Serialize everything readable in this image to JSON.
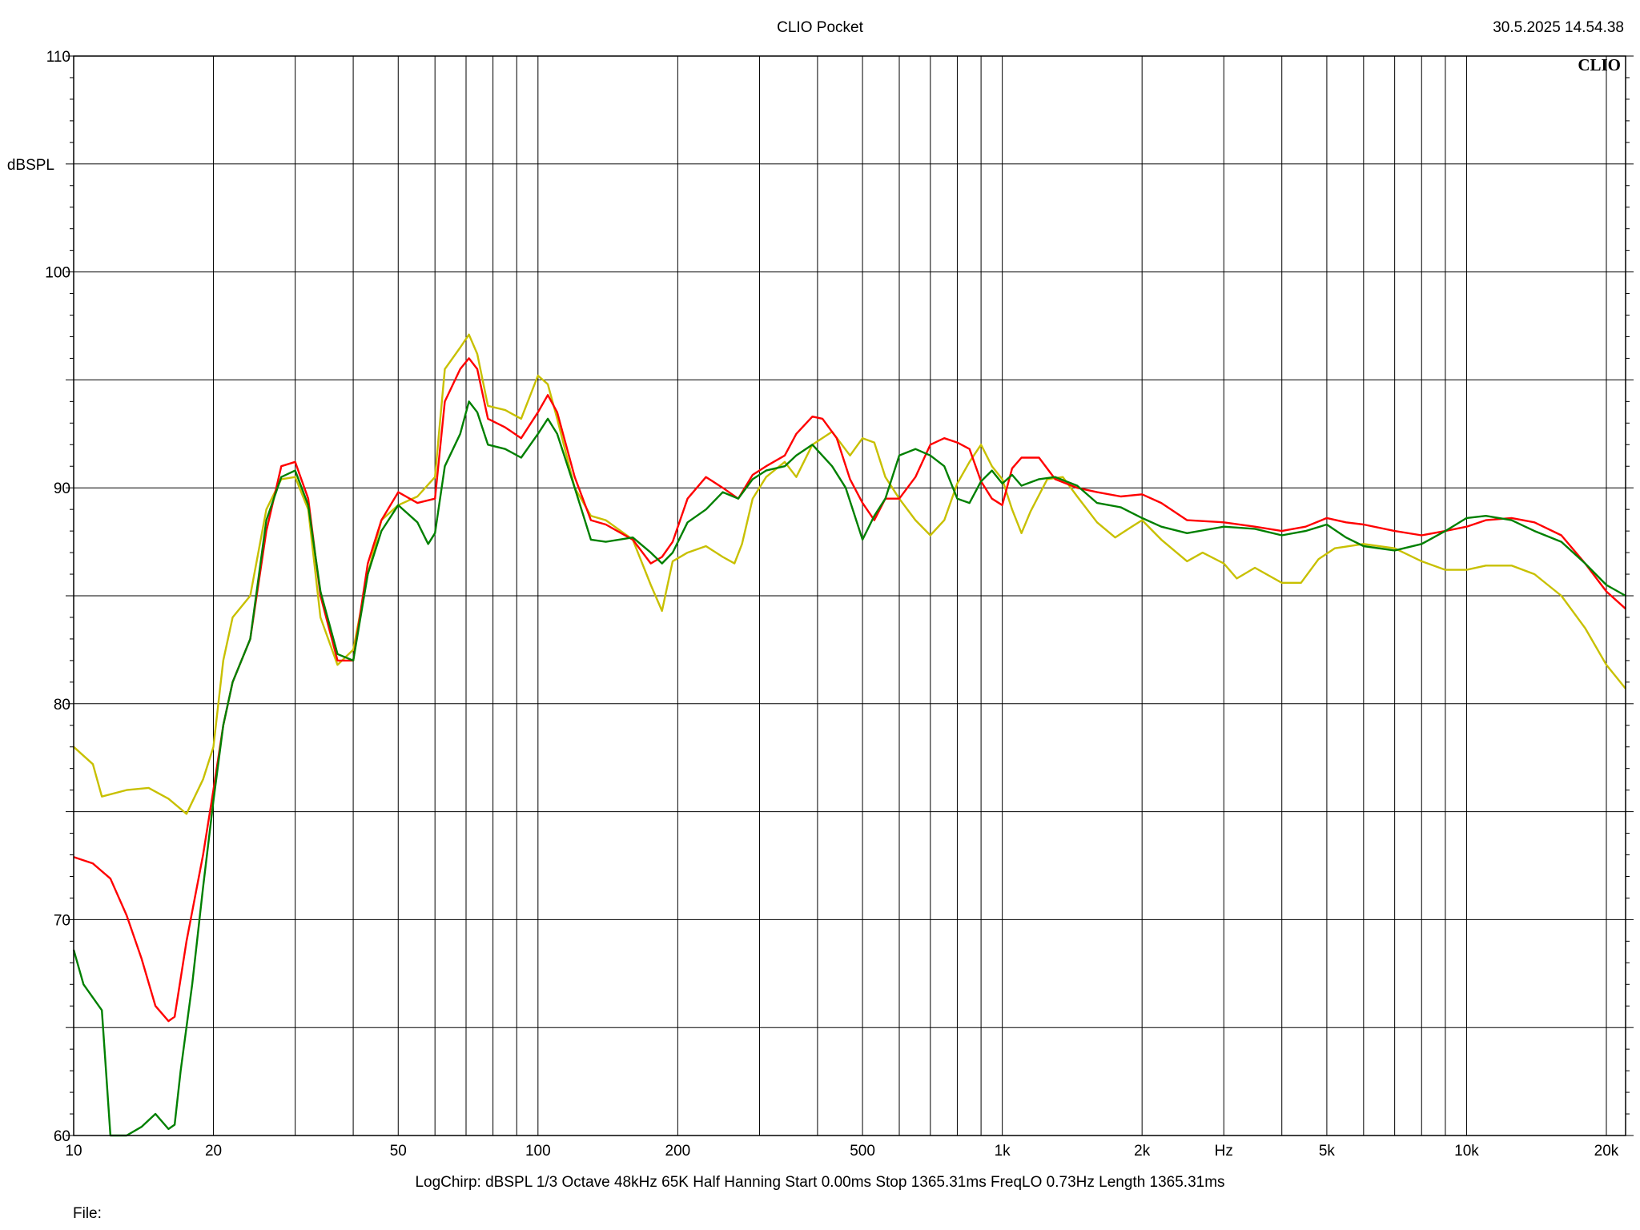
{
  "header": {
    "title": "CLIO Pocket",
    "timestamp": "30.5.2025 14.54.38",
    "brand": "CLIO"
  },
  "footer": {
    "settings": "LogChirp:  dBSPL   1/3 Octave   48kHz   65K   Half Hanning   Start 0.00ms    Stop 1365.31ms    FreqLO 0.73Hz    Length 1365.31ms",
    "file_label": "File:"
  },
  "chart_data": {
    "type": "line",
    "title": "CLIO Pocket",
    "xlabel": "Hz",
    "ylabel": "dBSPL",
    "xscale": "log",
    "xlim": [
      10,
      22000
    ],
    "ylim": [
      60,
      110
    ],
    "grid": true,
    "y_ticks": [
      {
        "value": 60,
        "label": "60"
      },
      {
        "value": 70,
        "label": "70"
      },
      {
        "value": 80,
        "label": "80"
      },
      {
        "value": 90,
        "label": "90"
      },
      {
        "value": 100,
        "label": "100"
      },
      {
        "value": 110,
        "label": "110"
      }
    ],
    "x_ticks": [
      {
        "value": 10,
        "label": "10"
      },
      {
        "value": 20,
        "label": "20"
      },
      {
        "value": 50,
        "label": "50"
      },
      {
        "value": 100,
        "label": "100"
      },
      {
        "value": 200,
        "label": "200"
      },
      {
        "value": 500,
        "label": "500"
      },
      {
        "value": 1000,
        "label": "1k"
      },
      {
        "value": 2000,
        "label": "2k"
      },
      {
        "value": 5000,
        "label": "5k"
      },
      {
        "value": 10000,
        "label": "10k"
      },
      {
        "value": 20000,
        "label": "20k"
      }
    ],
    "series": [
      {
        "color": "#c8c000",
        "points": [
          [
            10,
            78
          ],
          [
            11,
            77.2
          ],
          [
            11.5,
            75.7
          ],
          [
            13,
            76
          ],
          [
            14.5,
            76.1
          ],
          [
            16,
            75.6
          ],
          [
            17.5,
            74.9
          ],
          [
            19,
            76.5
          ],
          [
            20,
            78
          ],
          [
            21,
            82
          ],
          [
            22,
            84
          ],
          [
            24,
            85
          ],
          [
            26,
            89
          ],
          [
            28,
            90.4
          ],
          [
            30,
            90.5
          ],
          [
            32,
            89
          ],
          [
            34,
            84
          ],
          [
            37,
            81.8
          ],
          [
            40,
            82.5
          ],
          [
            43,
            86
          ],
          [
            46,
            88.5
          ],
          [
            50,
            89.2
          ],
          [
            55,
            89.6
          ],
          [
            60,
            90.5
          ],
          [
            63,
            95.5
          ],
          [
            68,
            96.5
          ],
          [
            71,
            97.1
          ],
          [
            74,
            96.2
          ],
          [
            78,
            93.8
          ],
          [
            85,
            93.6
          ],
          [
            92,
            93.2
          ],
          [
            100,
            95.2
          ],
          [
            105,
            94.8
          ],
          [
            110,
            93.2
          ],
          [
            120,
            90
          ],
          [
            130,
            88.7
          ],
          [
            140,
            88.5
          ],
          [
            160,
            87.6
          ],
          [
            175,
            85.5
          ],
          [
            185,
            84.3
          ],
          [
            195,
            86.6
          ],
          [
            210,
            87
          ],
          [
            230,
            87.3
          ],
          [
            250,
            86.8
          ],
          [
            265,
            86.5
          ],
          [
            275,
            87.4
          ],
          [
            290,
            89.5
          ],
          [
            310,
            90.5
          ],
          [
            340,
            91.2
          ],
          [
            360,
            90.5
          ],
          [
            390,
            92
          ],
          [
            430,
            92.6
          ],
          [
            470,
            91.5
          ],
          [
            500,
            92.3
          ],
          [
            530,
            92.1
          ],
          [
            560,
            90.5
          ],
          [
            600,
            89.5
          ],
          [
            650,
            88.5
          ],
          [
            700,
            87.8
          ],
          [
            750,
            88.5
          ],
          [
            800,
            90.2
          ],
          [
            850,
            91.2
          ],
          [
            900,
            92
          ],
          [
            950,
            91
          ],
          [
            1000,
            90.4
          ],
          [
            1050,
            89
          ],
          [
            1100,
            87.9
          ],
          [
            1150,
            88.9
          ],
          [
            1250,
            90.4
          ],
          [
            1350,
            90.5
          ],
          [
            1450,
            89.6
          ],
          [
            1600,
            88.4
          ],
          [
            1750,
            87.7
          ],
          [
            1900,
            88.2
          ],
          [
            2000,
            88.5
          ],
          [
            2200,
            87.6
          ],
          [
            2500,
            86.6
          ],
          [
            2700,
            87
          ],
          [
            3000,
            86.5
          ],
          [
            3200,
            85.8
          ],
          [
            3500,
            86.3
          ],
          [
            4000,
            85.6
          ],
          [
            4400,
            85.6
          ],
          [
            4800,
            86.7
          ],
          [
            5200,
            87.2
          ],
          [
            6000,
            87.4
          ],
          [
            7000,
            87.2
          ],
          [
            8000,
            86.6
          ],
          [
            9000,
            86.2
          ],
          [
            10000,
            86.2
          ],
          [
            11000,
            86.4
          ],
          [
            12500,
            86.4
          ],
          [
            14000,
            86
          ],
          [
            16000,
            85
          ],
          [
            18000,
            83.5
          ],
          [
            20000,
            81.8
          ],
          [
            22000,
            80.7
          ]
        ]
      },
      {
        "color": "#ff0000",
        "points": [
          [
            10,
            72.9
          ],
          [
            11,
            72.6
          ],
          [
            12,
            71.9
          ],
          [
            13,
            70.2
          ],
          [
            14,
            68.2
          ],
          [
            15,
            66
          ],
          [
            16,
            65.3
          ],
          [
            16.5,
            65.5
          ],
          [
            17.5,
            69
          ],
          [
            19,
            73
          ],
          [
            20,
            76
          ],
          [
            21,
            79
          ],
          [
            22,
            81
          ],
          [
            24,
            83
          ],
          [
            26,
            88
          ],
          [
            28,
            91
          ],
          [
            30,
            91.2
          ],
          [
            32,
            89.5
          ],
          [
            34,
            85
          ],
          [
            37,
            82
          ],
          [
            40,
            82
          ],
          [
            43,
            86.5
          ],
          [
            46,
            88.5
          ],
          [
            50,
            89.8
          ],
          [
            55,
            89.3
          ],
          [
            60,
            89.5
          ],
          [
            63,
            94
          ],
          [
            68,
            95.5
          ],
          [
            71,
            96
          ],
          [
            74,
            95.5
          ],
          [
            78,
            93.2
          ],
          [
            85,
            92.8
          ],
          [
            92,
            92.3
          ],
          [
            100,
            93.5
          ],
          [
            105,
            94.3
          ],
          [
            110,
            93.5
          ],
          [
            120,
            90.5
          ],
          [
            130,
            88.5
          ],
          [
            140,
            88.3
          ],
          [
            160,
            87.6
          ],
          [
            175,
            86.5
          ],
          [
            185,
            86.8
          ],
          [
            195,
            87.5
          ],
          [
            210,
            89.5
          ],
          [
            230,
            90.5
          ],
          [
            250,
            90
          ],
          [
            270,
            89.5
          ],
          [
            290,
            90.6
          ],
          [
            310,
            91
          ],
          [
            340,
            91.5
          ],
          [
            360,
            92.5
          ],
          [
            390,
            93.3
          ],
          [
            410,
            93.2
          ],
          [
            440,
            92.3
          ],
          [
            470,
            90.4
          ],
          [
            500,
            89.3
          ],
          [
            530,
            88.5
          ],
          [
            560,
            89.5
          ],
          [
            600,
            89.5
          ],
          [
            650,
            90.5
          ],
          [
            700,
            92
          ],
          [
            750,
            92.3
          ],
          [
            800,
            92.1
          ],
          [
            850,
            91.8
          ],
          [
            900,
            90.3
          ],
          [
            950,
            89.5
          ],
          [
            1000,
            89.2
          ],
          [
            1050,
            90.9
          ],
          [
            1100,
            91.4
          ],
          [
            1200,
            91.4
          ],
          [
            1300,
            90.4
          ],
          [
            1450,
            90
          ],
          [
            1600,
            89.8
          ],
          [
            1800,
            89.6
          ],
          [
            2000,
            89.7
          ],
          [
            2200,
            89.3
          ],
          [
            2500,
            88.5
          ],
          [
            3000,
            88.4
          ],
          [
            3500,
            88.2
          ],
          [
            4000,
            88
          ],
          [
            4500,
            88.2
          ],
          [
            5000,
            88.6
          ],
          [
            5500,
            88.4
          ],
          [
            6000,
            88.3
          ],
          [
            7000,
            88
          ],
          [
            8000,
            87.8
          ],
          [
            9000,
            88
          ],
          [
            10000,
            88.2
          ],
          [
            11000,
            88.5
          ],
          [
            12500,
            88.6
          ],
          [
            14000,
            88.4
          ],
          [
            16000,
            87.8
          ],
          [
            18000,
            86.5
          ],
          [
            20000,
            85.2
          ],
          [
            22000,
            84.4
          ]
        ]
      },
      {
        "color": "#008000",
        "points": [
          [
            10,
            68.6
          ],
          [
            10.5,
            67
          ],
          [
            11.5,
            65.8
          ],
          [
            12,
            60
          ],
          [
            13,
            60
          ],
          [
            14,
            60.4
          ],
          [
            15,
            61
          ],
          [
            16,
            60.3
          ],
          [
            16.5,
            60.5
          ],
          [
            17,
            63
          ],
          [
            18,
            67
          ],
          [
            19,
            71.5
          ],
          [
            20,
            75.5
          ],
          [
            21,
            79
          ],
          [
            22,
            81
          ],
          [
            24,
            83
          ],
          [
            26,
            88.5
          ],
          [
            28,
            90.5
          ],
          [
            30,
            90.8
          ],
          [
            32,
            89.2
          ],
          [
            34,
            85.2
          ],
          [
            37,
            82.3
          ],
          [
            40,
            82
          ],
          [
            43,
            86
          ],
          [
            46,
            88
          ],
          [
            50,
            89.2
          ],
          [
            55,
            88.4
          ],
          [
            58,
            87.4
          ],
          [
            60,
            87.9
          ],
          [
            63,
            91
          ],
          [
            68,
            92.5
          ],
          [
            71,
            94
          ],
          [
            74,
            93.5
          ],
          [
            78,
            92
          ],
          [
            85,
            91.8
          ],
          [
            92,
            91.4
          ],
          [
            100,
            92.5
          ],
          [
            105,
            93.2
          ],
          [
            110,
            92.5
          ],
          [
            120,
            90
          ],
          [
            130,
            87.6
          ],
          [
            140,
            87.5
          ],
          [
            160,
            87.7
          ],
          [
            175,
            87
          ],
          [
            185,
            86.5
          ],
          [
            195,
            87
          ],
          [
            210,
            88.4
          ],
          [
            230,
            89
          ],
          [
            250,
            89.8
          ],
          [
            270,
            89.5
          ],
          [
            290,
            90.4
          ],
          [
            310,
            90.8
          ],
          [
            340,
            91
          ],
          [
            360,
            91.5
          ],
          [
            390,
            92
          ],
          [
            430,
            91
          ],
          [
            460,
            90
          ],
          [
            500,
            87.6
          ],
          [
            530,
            88.7
          ],
          [
            560,
            89.5
          ],
          [
            600,
            91.5
          ],
          [
            650,
            91.8
          ],
          [
            700,
            91.5
          ],
          [
            750,
            91
          ],
          [
            800,
            89.5
          ],
          [
            850,
            89.3
          ],
          [
            900,
            90.3
          ],
          [
            950,
            90.8
          ],
          [
            1000,
            90.2
          ],
          [
            1050,
            90.6
          ],
          [
            1100,
            90.1
          ],
          [
            1200,
            90.4
          ],
          [
            1300,
            90.5
          ],
          [
            1450,
            90.1
          ],
          [
            1600,
            89.3
          ],
          [
            1800,
            89.1
          ],
          [
            2000,
            88.6
          ],
          [
            2200,
            88.2
          ],
          [
            2500,
            87.9
          ],
          [
            3000,
            88.2
          ],
          [
            3500,
            88.1
          ],
          [
            4000,
            87.8
          ],
          [
            4500,
            88
          ],
          [
            5000,
            88.3
          ],
          [
            5500,
            87.7
          ],
          [
            6000,
            87.3
          ],
          [
            7000,
            87.1
          ],
          [
            8000,
            87.4
          ],
          [
            9000,
            88
          ],
          [
            10000,
            88.6
          ],
          [
            11000,
            88.7
          ],
          [
            12500,
            88.5
          ],
          [
            14000,
            88
          ],
          [
            16000,
            87.5
          ],
          [
            18000,
            86.5
          ],
          [
            20000,
            85.5
          ],
          [
            22000,
            85
          ]
        ]
      }
    ]
  }
}
